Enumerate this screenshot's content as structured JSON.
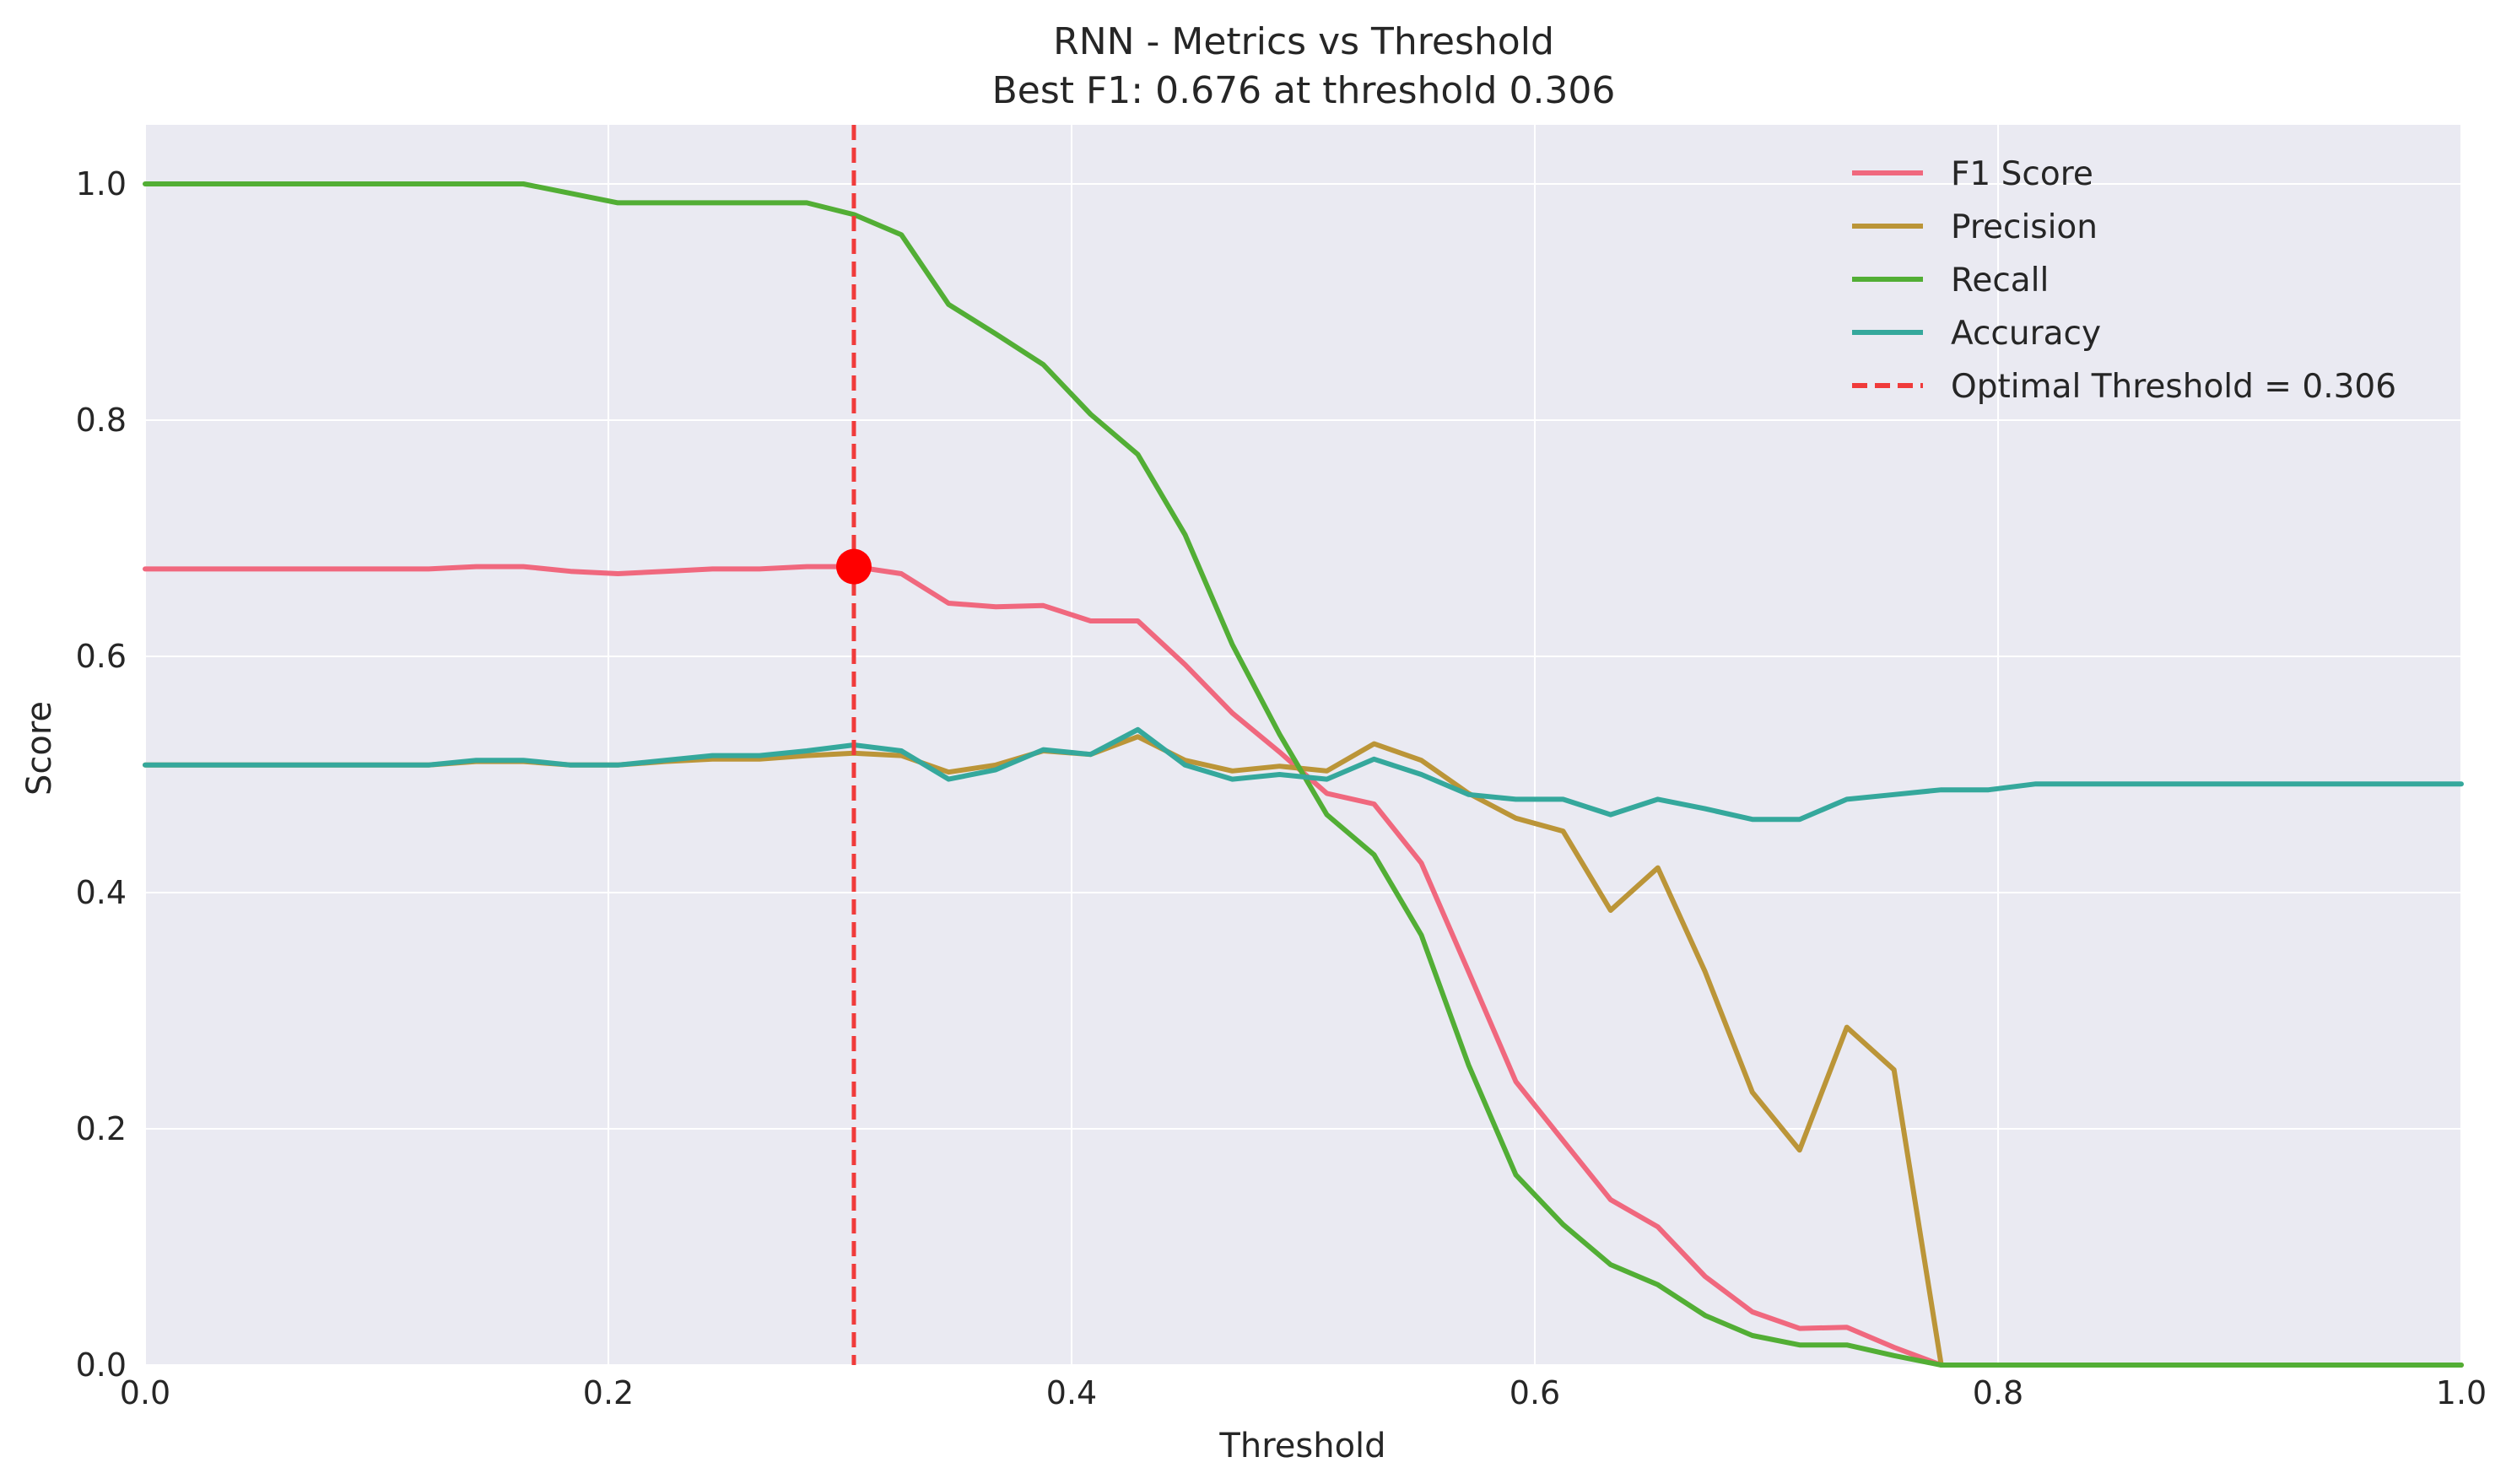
{
  "chart_data": {
    "type": "line",
    "title": "RNN - Metrics vs Threshold",
    "subtitle": "Best F1: 0.676 at threshold 0.306",
    "xlabel": "Threshold",
    "ylabel": "Score",
    "xlim": [
      0.0,
      1.0
    ],
    "ylim": [
      0.0,
      1.05
    ],
    "x_ticks": [
      "0.0",
      "0.2",
      "0.4",
      "0.6",
      "0.8",
      "1.0"
    ],
    "y_ticks": [
      "0.0",
      "0.2",
      "0.4",
      "0.6",
      "0.8",
      "1.0"
    ],
    "grid": true,
    "legend_position": "top-right",
    "x": [
      0.0,
      0.0204,
      0.0408,
      0.0612,
      0.0816,
      0.102,
      0.1224,
      0.1429,
      0.1633,
      0.1837,
      0.2041,
      0.2245,
      0.2449,
      0.2653,
      0.2857,
      0.3061,
      0.3265,
      0.3469,
      0.3673,
      0.3878,
      0.4082,
      0.4286,
      0.449,
      0.4694,
      0.4898,
      0.5102,
      0.5306,
      0.551,
      0.5714,
      0.5918,
      0.6122,
      0.6327,
      0.6531,
      0.6735,
      0.6939,
      0.7143,
      0.7347,
      0.7551,
      0.7755,
      0.7959,
      0.8163,
      0.8367,
      0.8571,
      0.8776,
      0.898,
      0.9184,
      0.9388,
      0.9592,
      0.9796,
      1.0
    ],
    "series": [
      {
        "name": "F1 Score",
        "color": "#f0687e",
        "values": [
          0.674,
          0.674,
          0.674,
          0.674,
          0.674,
          0.674,
          0.674,
          0.676,
          0.676,
          0.672,
          0.67,
          0.672,
          0.674,
          0.674,
          0.676,
          0.676,
          0.67,
          0.645,
          0.642,
          0.643,
          0.63,
          0.63,
          0.593,
          0.552,
          0.519,
          0.484,
          0.475,
          0.425,
          0.333,
          0.24,
          0.19,
          0.14,
          0.117,
          0.075,
          0.045,
          0.031,
          0.032,
          0.015,
          0.0,
          0.0,
          0.0,
          0.0,
          0.0,
          0.0,
          0.0,
          0.0,
          0.0,
          0.0,
          0.0,
          0.0
        ]
      },
      {
        "name": "Precision",
        "color": "#bb9538",
        "values": [
          0.508,
          0.508,
          0.508,
          0.508,
          0.508,
          0.508,
          0.508,
          0.511,
          0.511,
          0.508,
          0.508,
          0.511,
          0.513,
          0.513,
          0.516,
          0.518,
          0.516,
          0.502,
          0.508,
          0.52,
          0.517,
          0.532,
          0.512,
          0.503,
          0.507,
          0.503,
          0.526,
          0.512,
          0.484,
          0.463,
          0.452,
          0.385,
          0.421,
          0.333,
          0.231,
          0.182,
          0.286,
          0.25,
          0.0,
          0.0,
          0.0,
          0.0,
          0.0,
          0.0,
          0.0,
          0.0,
          0.0,
          0.0,
          0.0,
          0.0
        ]
      },
      {
        "name": "Recall",
        "color": "#52ae35",
        "values": [
          1.0,
          1.0,
          1.0,
          1.0,
          1.0,
          1.0,
          1.0,
          1.0,
          1.0,
          0.992,
          0.984,
          0.984,
          0.984,
          0.984,
          0.984,
          0.974,
          0.957,
          0.898,
          0.873,
          0.847,
          0.805,
          0.771,
          0.703,
          0.61,
          0.534,
          0.466,
          0.432,
          0.364,
          0.254,
          0.161,
          0.119,
          0.085,
          0.068,
          0.042,
          0.025,
          0.017,
          0.017,
          0.008,
          0.0,
          0.0,
          0.0,
          0.0,
          0.0,
          0.0,
          0.0,
          0.0,
          0.0,
          0.0,
          0.0,
          0.0
        ]
      },
      {
        "name": "Accuracy",
        "color": "#35a89c",
        "values": [
          0.508,
          0.508,
          0.508,
          0.508,
          0.508,
          0.508,
          0.508,
          0.512,
          0.512,
          0.508,
          0.508,
          0.512,
          0.516,
          0.516,
          0.52,
          0.525,
          0.52,
          0.496,
          0.504,
          0.521,
          0.517,
          0.538,
          0.508,
          0.496,
          0.5,
          0.496,
          0.513,
          0.5,
          0.483,
          0.479,
          0.479,
          0.466,
          0.479,
          0.471,
          0.462,
          0.462,
          0.479,
          0.483,
          0.487,
          0.487,
          0.492,
          0.492,
          0.492,
          0.492,
          0.492,
          0.492,
          0.492,
          0.492,
          0.492,
          0.492
        ]
      }
    ],
    "optimal_threshold": {
      "name": "Optimal Threshold = 0.306",
      "x": 0.306,
      "color": "#f03b3b"
    },
    "best_point": {
      "x": 0.306,
      "y": 0.676,
      "color": "#ff0000"
    }
  }
}
